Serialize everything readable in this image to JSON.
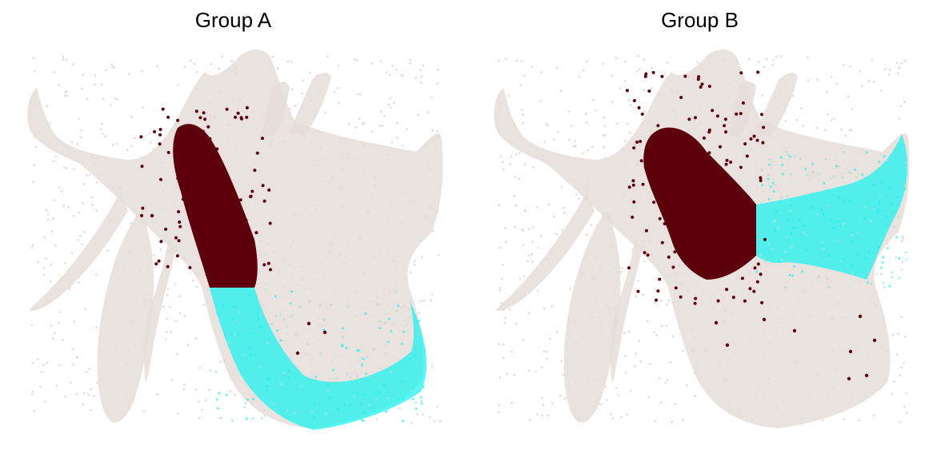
{
  "chart_data": [
    {
      "type": "scatter",
      "title": "Group A",
      "axes_visible": false,
      "grid": false,
      "colors": {
        "background_cells": "#e6ddd9",
        "highlight_dark": "#5c000b",
        "highlight_cyan": "#1ff2f0",
        "highlight_cyan_faint": "#a9e0dc"
      },
      "series": [
        {
          "color": "#e6ddd9",
          "role": "background"
        },
        {
          "color": "#5c000b",
          "role": "highlight"
        },
        {
          "color": "#1ff2f0",
          "role": "highlight"
        }
      ]
    },
    {
      "type": "scatter",
      "title": "Group B",
      "axes_visible": false,
      "grid": false,
      "colors": {
        "background_cells": "#e6ddd9",
        "highlight_dark": "#5c000b",
        "highlight_cyan": "#1ff2f0",
        "highlight_cyan_faint": "#a9e0dc"
      },
      "series": [
        {
          "color": "#e6ddd9",
          "role": "background"
        },
        {
          "color": "#5c000b",
          "role": "highlight"
        },
        {
          "color": "#1ff2f0",
          "role": "highlight"
        }
      ]
    }
  ]
}
